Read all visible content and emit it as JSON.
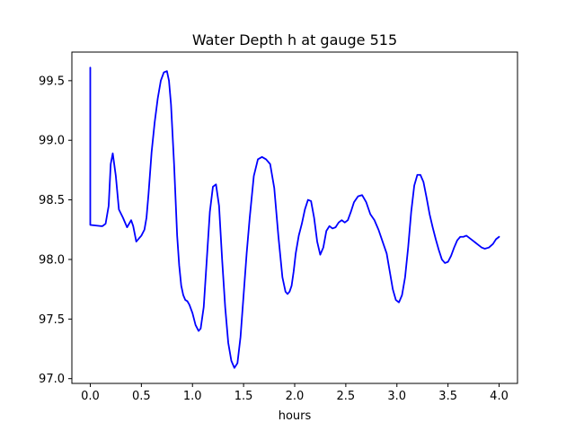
{
  "chart_data": {
    "type": "line",
    "title": "Water Depth h at gauge 515",
    "xlabel": "hours",
    "ylabel": "",
    "xlim": [
      -0.18,
      4.18
    ],
    "ylim": [
      96.96,
      99.74
    ],
    "xticks": [
      0.0,
      0.5,
      1.0,
      1.5,
      2.0,
      2.5,
      3.0,
      3.5,
      4.0
    ],
    "xtick_labels": [
      "0.0",
      "0.5",
      "1.0",
      "1.5",
      "2.0",
      "2.5",
      "3.0",
      "3.5",
      "4.0"
    ],
    "yticks": [
      97.0,
      97.5,
      98.0,
      98.5,
      99.0,
      99.5
    ],
    "ytick_labels": [
      "97.0",
      "97.5",
      "98.0",
      "98.5",
      "99.0",
      "99.5"
    ],
    "grid": false,
    "legend": "none",
    "series": [
      {
        "color": "#0000ff",
        "x": [
          0.0,
          0.0,
          0.0,
          0.1,
          0.12,
          0.15,
          0.18,
          0.2,
          0.22,
          0.25,
          0.28,
          0.32,
          0.36,
          0.38,
          0.4,
          0.42,
          0.45,
          0.48,
          0.5,
          0.53,
          0.55,
          0.57,
          0.6,
          0.63,
          0.66,
          0.69,
          0.72,
          0.75,
          0.77,
          0.79,
          0.82,
          0.85,
          0.87,
          0.89,
          0.91,
          0.93,
          0.95,
          0.97,
          1.0,
          1.03,
          1.06,
          1.08,
          1.11,
          1.14,
          1.17,
          1.2,
          1.23,
          1.26,
          1.29,
          1.32,
          1.35,
          1.38,
          1.41,
          1.44,
          1.47,
          1.5,
          1.53,
          1.56,
          1.6,
          1.64,
          1.68,
          1.72,
          1.76,
          1.8,
          1.84,
          1.88,
          1.91,
          1.93,
          1.95,
          1.97,
          1.99,
          2.01,
          2.04,
          2.07,
          2.1,
          2.13,
          2.16,
          2.19,
          2.22,
          2.25,
          2.28,
          2.31,
          2.34,
          2.37,
          2.4,
          2.43,
          2.46,
          2.49,
          2.52,
          2.55,
          2.58,
          2.62,
          2.66,
          2.7,
          2.74,
          2.78,
          2.82,
          2.86,
          2.9,
          2.93,
          2.96,
          2.99,
          3.02,
          3.05,
          3.08,
          3.11,
          3.14,
          3.17,
          3.2,
          3.23,
          3.26,
          3.29,
          3.32,
          3.35,
          3.38,
          3.41,
          3.44,
          3.47,
          3.5,
          3.53,
          3.56,
          3.59,
          3.62,
          3.65,
          3.68,
          3.71,
          3.74,
          3.77,
          3.8,
          3.83,
          3.86,
          3.9,
          3.94,
          3.97,
          4.0
        ],
        "y": [
          99.61,
          98.8,
          98.29,
          98.28,
          98.28,
          98.3,
          98.45,
          98.8,
          98.89,
          98.7,
          98.42,
          98.35,
          98.27,
          98.3,
          98.33,
          98.28,
          98.15,
          98.18,
          98.2,
          98.25,
          98.35,
          98.55,
          98.9,
          99.15,
          99.35,
          99.5,
          99.57,
          99.58,
          99.5,
          99.3,
          98.8,
          98.2,
          97.95,
          97.78,
          97.7,
          97.66,
          97.65,
          97.62,
          97.55,
          97.45,
          97.4,
          97.42,
          97.6,
          98.0,
          98.4,
          98.61,
          98.63,
          98.45,
          98.0,
          97.6,
          97.3,
          97.15,
          97.09,
          97.13,
          97.35,
          97.7,
          98.05,
          98.35,
          98.7,
          98.84,
          98.86,
          98.84,
          98.8,
          98.6,
          98.2,
          97.85,
          97.73,
          97.71,
          97.73,
          97.78,
          97.9,
          98.05,
          98.2,
          98.3,
          98.42,
          98.5,
          98.49,
          98.35,
          98.15,
          98.04,
          98.1,
          98.24,
          98.28,
          98.26,
          98.27,
          98.31,
          98.33,
          98.31,
          98.33,
          98.4,
          98.48,
          98.53,
          98.54,
          98.48,
          98.38,
          98.33,
          98.25,
          98.15,
          98.05,
          97.9,
          97.75,
          97.66,
          97.64,
          97.7,
          97.85,
          98.1,
          98.4,
          98.62,
          98.71,
          98.71,
          98.65,
          98.52,
          98.38,
          98.27,
          98.17,
          98.08,
          98.0,
          97.97,
          97.98,
          98.03,
          98.1,
          98.16,
          98.19,
          98.19,
          98.2,
          98.18,
          98.16,
          98.14,
          98.12,
          98.1,
          98.09,
          98.1,
          98.13,
          98.17,
          98.19
        ]
      }
    ]
  }
}
